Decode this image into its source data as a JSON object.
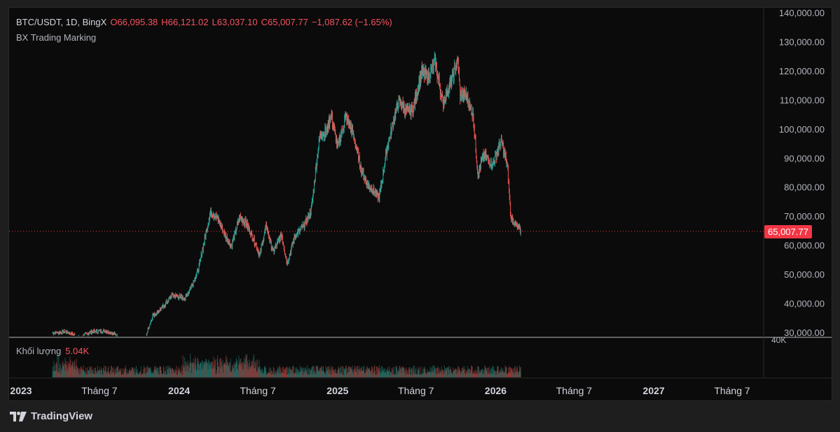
{
  "header": {
    "symbol": "BTC/USDT, 1D, BingX",
    "open": "O66,095.38",
    "high": "H66,121.02",
    "low": "L63,037.10",
    "close": "C65,007.77",
    "change": "−1,087.62 (−1.65%)",
    "indicator": "BX Trading Marking"
  },
  "volume_pane": {
    "label": "Khối lượng",
    "value": "5.04K",
    "axis_label": "40K"
  },
  "last_price": "65,007.77",
  "brand": "TradingView",
  "colors": {
    "up": "#26a69a",
    "down": "#ef5350",
    "background": "#0b0b0b",
    "price_line": "#f23645"
  },
  "chart_data": {
    "type": "candlestick",
    "ylim": [
      30000,
      140000
    ],
    "y_ticks": [
      "140,000.00",
      "130,000.00",
      "120,000.00",
      "110,000.00",
      "100,000.00",
      "90,000.00",
      "80,000.00",
      "70,000.00",
      "60,000.00",
      "50,000.00",
      "40,000.00",
      "30,000.00"
    ],
    "y_tick_values": [
      140000,
      130000,
      120000,
      110000,
      100000,
      90000,
      80000,
      70000,
      60000,
      50000,
      40000,
      30000
    ],
    "x_ticks": [
      "2023",
      "Tháng 7",
      "2024",
      "Tháng 7",
      "2025",
      "Tháng 7",
      "2026",
      "Tháng 7",
      "2027",
      "Tháng 7"
    ],
    "x_tick_dates": [
      "2023-01-01",
      "2023-07-01",
      "2024-01-01",
      "2024-07-01",
      "2025-01-01",
      "2025-07-01",
      "2026-01-01",
      "2026-07-01",
      "2027-01-01",
      "2027-07-01"
    ],
    "last_close": 65007.77,
    "series": [
      {
        "dates": [
          "2023-03-15",
          "2023-04-15",
          "2023-05-15",
          "2023-06-15",
          "2023-07-15",
          "2023-08-15",
          "2023-09-15",
          "2023-10-15",
          "2023-11-01",
          "2023-11-15",
          "2023-12-01",
          "2023-12-15",
          "2024-01-15",
          "2024-02-01",
          "2024-02-15",
          "2024-03-01",
          "2024-03-14",
          "2024-04-01",
          "2024-04-15",
          "2024-05-01",
          "2024-05-20",
          "2024-06-05",
          "2024-06-25",
          "2024-07-05",
          "2024-07-20",
          "2024-08-05",
          "2024-08-25",
          "2024-09-06",
          "2024-09-25",
          "2024-10-15",
          "2024-11-01",
          "2024-11-13",
          "2024-11-22",
          "2024-12-05",
          "2024-12-17",
          "2025-01-01",
          "2025-01-20",
          "2025-02-05",
          "2025-02-25",
          "2025-03-10",
          "2025-04-07",
          "2025-04-25",
          "2025-05-10",
          "2025-05-22",
          "2025-06-10",
          "2025-06-25",
          "2025-07-14",
          "2025-07-30",
          "2025-08-14",
          "2025-09-01",
          "2025-09-20",
          "2025-10-06",
          "2025-10-11",
          "2025-10-25",
          "2025-11-10",
          "2025-11-21",
          "2025-12-05",
          "2025-12-25",
          "2026-01-14",
          "2026-01-28",
          "2026-02-05",
          "2026-02-15",
          "2026-02-28"
        ],
        "values": [
          30000,
          30500,
          28800,
          30500,
          30800,
          29200,
          27200,
          28500,
          36000,
          37500,
          40000,
          43000,
          42000,
          47000,
          52000,
          63000,
          72000,
          69000,
          64000,
          60000,
          70000,
          67500,
          61000,
          56500,
          67000,
          58000,
          64000,
          54000,
          63500,
          67000,
          72000,
          88000,
          98500,
          99000,
          105000,
          94000,
          104500,
          99000,
          86000,
          81500,
          76500,
          93500,
          103000,
          110000,
          106000,
          107500,
          120000,
          118000,
          123500,
          109000,
          116500,
          124000,
          112000,
          111500,
          105000,
          84500,
          91500,
          88000,
          96000,
          87500,
          70000,
          67500,
          65007.77
        ]
      }
    ]
  }
}
